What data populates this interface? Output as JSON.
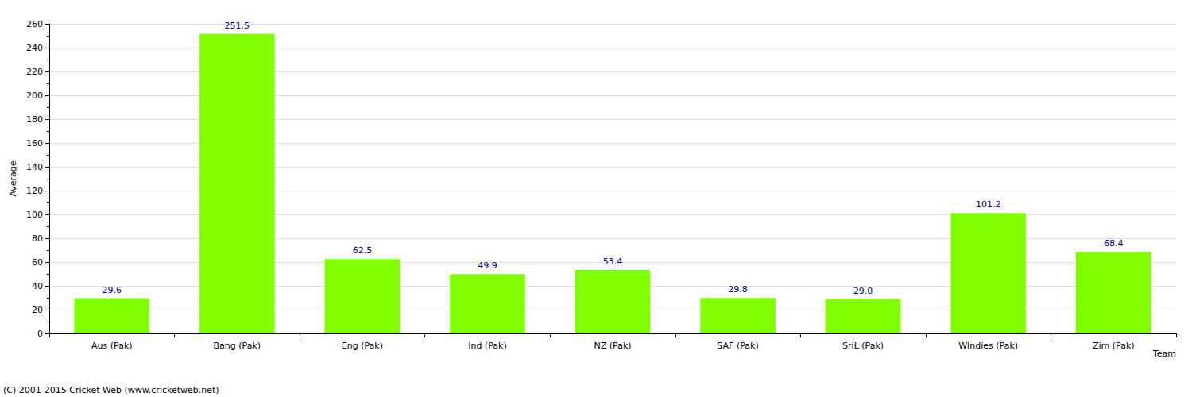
{
  "chart_data": {
    "type": "bar",
    "categories": [
      "Aus (Pak)",
      "Bang (Pak)",
      "Eng (Pak)",
      "Ind (Pak)",
      "NZ (Pak)",
      "SAF (Pak)",
      "SriL (Pak)",
      "WIndies (Pak)",
      "Zim (Pak)"
    ],
    "values": [
      29.6,
      251.5,
      62.5,
      49.9,
      53.4,
      29.8,
      29.0,
      101.2,
      68.4
    ],
    "value_labels": [
      "29.6",
      "251.5",
      "62.5",
      "49.9",
      "53.4",
      "29.8",
      "29.0",
      "101.2",
      "68.4"
    ],
    "color": "#80ff00",
    "x_label": "Team",
    "y_label": "Average",
    "annotations": [
      "(C) 2001-2015 Cricket Web (www.cricketweb.net)"
    ],
    "ylim": [
      0,
      260
    ],
    "yticks": [
      0,
      20,
      40,
      60,
      80,
      100,
      120,
      140,
      160,
      180,
      200,
      220,
      240,
      260
    ],
    "grid": true,
    "data_labels": true
  }
}
